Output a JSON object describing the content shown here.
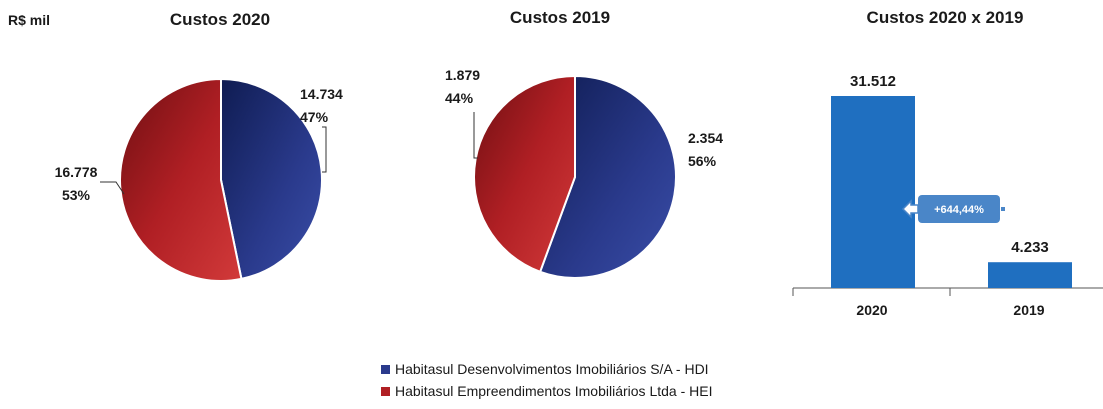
{
  "unit_label": "R$ mil",
  "colors": {
    "hdi": "#2a3a8c",
    "hei": "#b01f24",
    "bar": "#1f6fc0",
    "callout": "#4a86c8"
  },
  "chart_data": [
    {
      "type": "pie",
      "title": "Custos 2020",
      "slices": [
        {
          "series": "HDI",
          "value": 14734,
          "value_label": "14.734",
          "pct_label": "47%"
        },
        {
          "series": "HEI",
          "value": 16778,
          "value_label": "16.778",
          "pct_label": "53%"
        }
      ]
    },
    {
      "type": "pie",
      "title": "Custos 2019",
      "slices": [
        {
          "series": "HDI",
          "value": 2354,
          "value_label": "2.354",
          "pct_label": "56%"
        },
        {
          "series": "HEI",
          "value": 1879,
          "value_label": "1.879",
          "pct_label": "44%"
        }
      ]
    },
    {
      "type": "bar",
      "title": "Custos 2020 x 2019",
      "categories": [
        "2020",
        "2019"
      ],
      "values": [
        31512,
        4233
      ],
      "value_labels": [
        "31.512",
        "4.233"
      ],
      "ylim": [
        0,
        31512
      ],
      "annotation": "+644,44%"
    }
  ],
  "legend": [
    {
      "series": "HDI",
      "label": "Habitasul Desenvolvimentos Imobiliários S/A - HDI"
    },
    {
      "series": "HEI",
      "label": "Habitasul Empreendimentos Imobiliários Ltda - HEI"
    }
  ]
}
